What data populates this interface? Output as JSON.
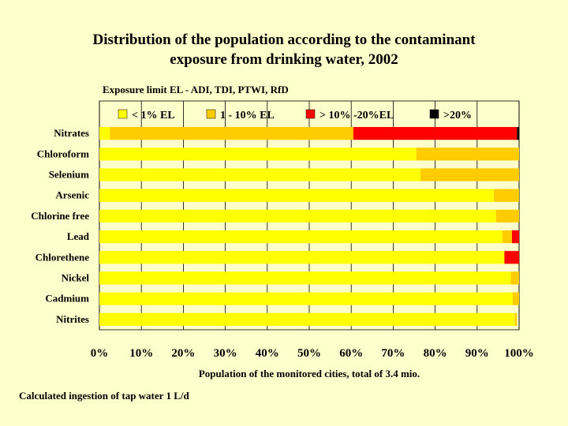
{
  "chart_data": {
    "type": "bar",
    "orientation": "horizontal",
    "stacked": true,
    "title": "Distribution of the population according to the contaminant exposure from drinking water, 2002",
    "title_lines": [
      "Distribution of the population according to the contaminant",
      "exposure from drinking water, 2002"
    ],
    "subtitle": "Exposure limit EL - ADI, TDI, PTWI, RfD",
    "xlabel": "Population of the monitored cities, total of  3.4 mio.",
    "ylabel": "",
    "footnote": "Calculated ingestion of tap water 1 L/d",
    "xlim": [
      0,
      100
    ],
    "x_ticks": [
      "0%",
      "10%",
      "20%",
      "30%",
      "40%",
      "50%",
      "60%",
      "70%",
      "80%",
      "90%",
      "100%"
    ],
    "grid": "vertical",
    "legend_position": "top",
    "categories": [
      "Nitrates",
      "Chloroform",
      "Selenium",
      "Arsenic",
      "Chlorine free",
      "Lead",
      "Chlorethene",
      "Nickel",
      "Cadmium",
      "Nitrites"
    ],
    "series": [
      {
        "name": "< 1% EL",
        "color": "#ffff00",
        "values": [
          2.5,
          75.5,
          76.5,
          94,
          94.5,
          96,
          96.5,
          98,
          98.5,
          99
        ]
      },
      {
        "name": "1 - 10% EL",
        "color": "#ffcc00",
        "values": [
          58,
          24.5,
          23.5,
          6,
          5.5,
          2.3,
          0,
          2,
          1.5,
          0.5
        ]
      },
      {
        "name": "> 10% -20%EL",
        "color": "#ff0000",
        "values": [
          39,
          0,
          0,
          0,
          0,
          1.7,
          3.5,
          0,
          0,
          0
        ]
      },
      {
        "name": ">20%",
        "color": "#000000",
        "values": [
          0.5,
          0,
          0,
          0,
          0,
          0,
          0,
          0,
          0,
          0
        ]
      }
    ]
  }
}
